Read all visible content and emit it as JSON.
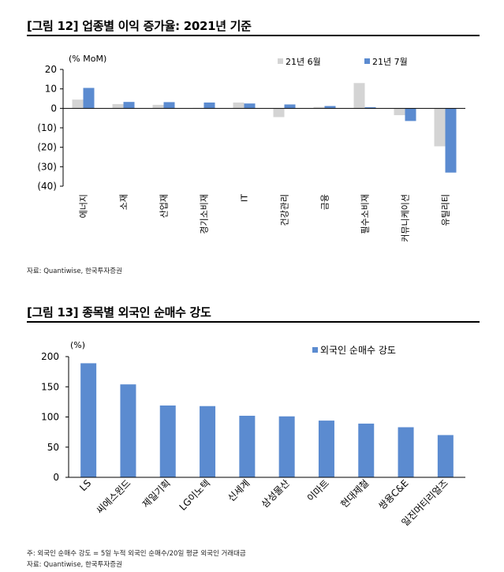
{
  "figure1": {
    "title": "[그림 12] 업종별 이익 증가율: 2021년 기준",
    "source": "자료: Quantiwise, 한국투자증권",
    "chart_data": {
      "type": "bar",
      "ylabel": "(% MoM)",
      "ylim": [
        -40,
        20
      ],
      "yticks": [
        "20",
        "10",
        "0",
        "(10)",
        "(20)",
        "(30)",
        "(40)"
      ],
      "ytick_values": [
        20,
        10,
        0,
        -10,
        -20,
        -30,
        -40
      ],
      "categories": [
        "에너지",
        "소재",
        "산업재",
        "경기소비재",
        "IT",
        "건강관리",
        "금융",
        "필수소비재",
        "커뮤니케이션",
        "유틸리티"
      ],
      "legend_position": "top-right",
      "series": [
        {
          "name": "21년 6월",
          "color": "#d4d4d4",
          "values": [
            4.5,
            2.2,
            1.8,
            0.2,
            3.0,
            -4.5,
            0.7,
            13.0,
            -3.5,
            -19.5
          ]
        },
        {
          "name": "21년 7월",
          "color": "#5b8bd0",
          "values": [
            10.5,
            3.3,
            3.2,
            3.0,
            2.5,
            2.0,
            1.2,
            0.6,
            -6.5,
            -33.0
          ]
        }
      ]
    }
  },
  "figure2": {
    "title": "[그림 13] 종목별 외국인 순매수 강도",
    "note": "주: 외국인 순매수 강도 = 5일 누적 외국인 순매수/20일 평균 외국인 거래대금",
    "source": "자료: Quantiwise, 한국투자증권",
    "chart_data": {
      "type": "bar",
      "ylabel": "(%)",
      "ylim": [
        0,
        200
      ],
      "yticks": [
        "200",
        "150",
        "100",
        "50",
        "0"
      ],
      "ytick_values": [
        200,
        150,
        100,
        50,
        0
      ],
      "categories": [
        "LS",
        "씨에스윈드",
        "제일기획",
        "LG이노텍",
        "신세계",
        "삼성물산",
        "이마트",
        "현대제철",
        "쌍용C&E",
        "일진머티리얼즈"
      ],
      "legend_position": "top-right",
      "series": [
        {
          "name": "외국인 순매수 강도",
          "color": "#5b8bd0",
          "values": [
            189,
            154,
            119,
            118,
            102,
            101,
            94,
            89,
            83,
            70
          ]
        }
      ]
    }
  }
}
